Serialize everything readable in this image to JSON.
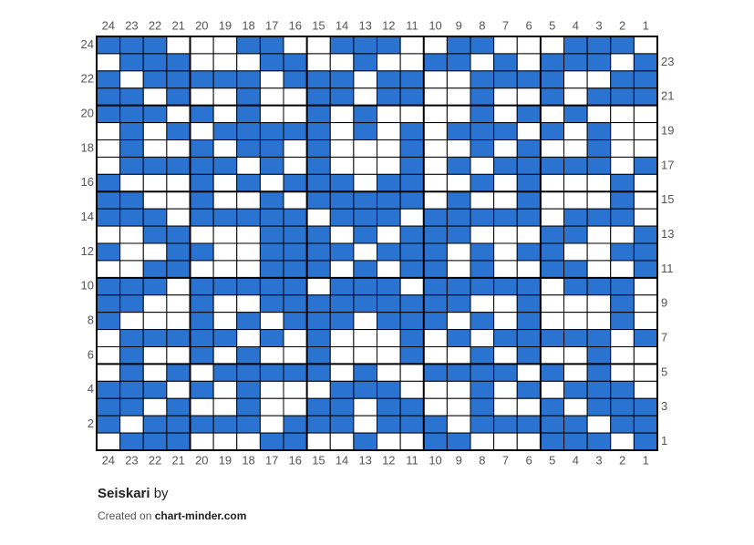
{
  "chart": {
    "columns": [
      24,
      23,
      22,
      21,
      20,
      19,
      18,
      17,
      16,
      15,
      14,
      13,
      12,
      11,
      10,
      9,
      8,
      7,
      6,
      5,
      4,
      3,
      2,
      1
    ],
    "rows": [
      24,
      23,
      22,
      21,
      20,
      19,
      18,
      17,
      16,
      15,
      14,
      13,
      12,
      11,
      10,
      9,
      8,
      7,
      6,
      5,
      4,
      3,
      2,
      1
    ],
    "color": "#2a73d0",
    "grid": [
      "XXX...XX..XXX..XX...XXX.",
      ".XXX...XX..X..XX.X.XXX.X",
      "X.XXXXX.XXX.XX..XXXX..XX",
      "XX.X..X..XX.XX..X..X.XXX",
      "XXX.X.X..X.X....X.X.X...",
      ".X.X.XXXXX.X.X.XXX.X.X..",
      ".X..X.XX.X...X..X.X..X..",
      ".XXXXX.X.X...X.X.XXXXX.X",
      "X...X.X.XXX.XX..X.X...X.",
      "XX..X..X.XXXXX.X..X...X.",
      "XXX.XXXXX.XXX.XXXXX.XXX.",
      "..XX...XXX.X.XXX...XX..X",
      "X..XX..XXXX.XXX.X.XX..XX",
      "..XX...XXX.X.XX.X..XX..X",
      "XXX.XXXXX.XXX.XXXXX.XXX.",
      "XX..X..XXXXXXXXX..X...X.",
      "X...X.X.XXX.XXX.X.X...X.",
      ".XXXXX.X.X...X.X.XXXXX.X",
      ".X..X.X..X...X..X.X..X..",
      ".X.X.XXXXX.X..XXXX.X.X..",
      "XXX.X.X...XXX...X.X.XXX.",
      "XX.X..X..XX.XX..X..X.XXX",
      "X.XXXXX.XXX.XXX.XXXXX.XX",
      ".XXX...XX..X..XX...XXX.X"
    ]
  },
  "footer": {
    "title": "Seiskari",
    "by": "by",
    "created_on": "Created on",
    "site": "chart-minder.com"
  }
}
